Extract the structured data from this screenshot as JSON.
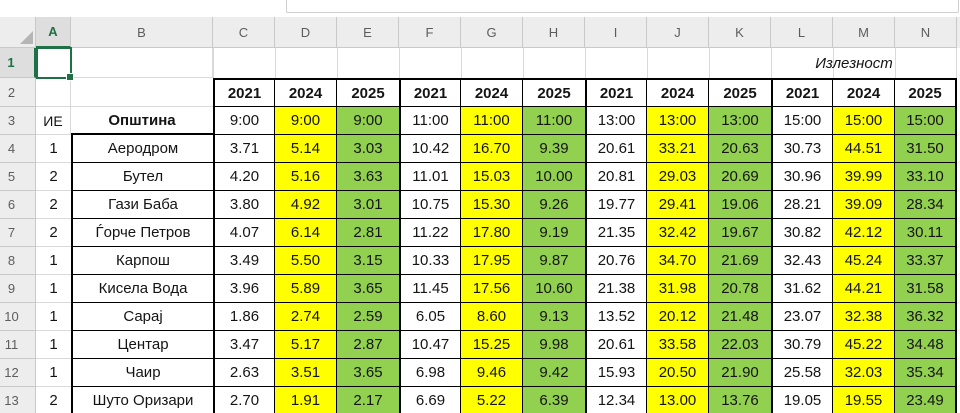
{
  "window": {
    "formula_bar_value": ""
  },
  "column_headers": [
    "A",
    "B",
    "C",
    "D",
    "E",
    "F",
    "G",
    "H",
    "I",
    "J",
    "K",
    "L",
    "M",
    "N"
  ],
  "row_headers_top": [
    "1",
    "2",
    "3"
  ],
  "selection": {
    "active_cell": "A1"
  },
  "row1_label": "Излезност",
  "years": [
    "2021",
    "2024",
    "2025",
    "2021",
    "2024",
    "2025",
    "2021",
    "2024",
    "2025",
    "2021",
    "2024",
    "2025"
  ],
  "subheader": {
    "ie": "ИЕ",
    "municipality": "Општина"
  },
  "times": [
    "9:00",
    "9:00",
    "9:00",
    "11:00",
    "11:00",
    "11:00",
    "13:00",
    "13:00",
    "13:00",
    "15:00",
    "15:00",
    "15:00"
  ],
  "colors": {
    "col_2021_bg": "#FFFFFF",
    "col_2024_bg": "#FFFF00",
    "col_2025_bg": "#92D050",
    "selection_green": "#1E7145"
  },
  "rows": [
    {
      "num": "4",
      "ie": "1",
      "name": "Аеродром",
      "values": [
        "3.71",
        "5.14",
        "3.03",
        "10.42",
        "16.70",
        "9.39",
        "20.61",
        "33.21",
        "20.63",
        "30.73",
        "44.51",
        "31.50"
      ]
    },
    {
      "num": "5",
      "ie": "2",
      "name": "Бутел",
      "values": [
        "4.20",
        "5.16",
        "3.63",
        "11.01",
        "15.03",
        "10.00",
        "20.81",
        "29.03",
        "20.69",
        "30.96",
        "39.99",
        "33.10"
      ]
    },
    {
      "num": "6",
      "ie": "2",
      "name": "Гази Баба",
      "values": [
        "3.80",
        "4.92",
        "3.01",
        "10.75",
        "15.30",
        "9.26",
        "19.77",
        "29.41",
        "19.06",
        "28.21",
        "39.09",
        "28.34"
      ]
    },
    {
      "num": "7",
      "ie": "2",
      "name": "Ѓорче Петров",
      "values": [
        "4.07",
        "6.14",
        "2.81",
        "11.22",
        "17.80",
        "9.19",
        "21.35",
        "32.42",
        "19.67",
        "30.82",
        "42.12",
        "30.11"
      ]
    },
    {
      "num": "8",
      "ie": "1",
      "name": "Карпош",
      "values": [
        "3.49",
        "5.50",
        "3.15",
        "10.33",
        "17.95",
        "9.87",
        "20.76",
        "34.70",
        "21.69",
        "32.43",
        "45.24",
        "33.37"
      ]
    },
    {
      "num": "9",
      "ie": "1",
      "name": "Кисела Вода",
      "values": [
        "3.96",
        "5.89",
        "3.65",
        "11.45",
        "17.56",
        "10.60",
        "21.38",
        "31.98",
        "20.78",
        "31.62",
        "44.21",
        "31.58"
      ]
    },
    {
      "num": "10",
      "ie": "1",
      "name": "Сарај",
      "values": [
        "1.86",
        "2.74",
        "2.59",
        "6.05",
        "8.60",
        "9.13",
        "13.52",
        "20.12",
        "21.48",
        "23.07",
        "32.38",
        "36.32"
      ]
    },
    {
      "num": "11",
      "ie": "1",
      "name": "Центар",
      "values": [
        "3.47",
        "5.17",
        "2.87",
        "10.47",
        "15.25",
        "9.98",
        "20.61",
        "33.58",
        "22.03",
        "30.79",
        "45.22",
        "34.48"
      ]
    },
    {
      "num": "12",
      "ie": "1",
      "name": "Чаир",
      "values": [
        "2.63",
        "3.51",
        "3.65",
        "6.98",
        "9.46",
        "9.42",
        "15.93",
        "20.50",
        "21.90",
        "25.58",
        "32.03",
        "35.34"
      ]
    },
    {
      "num": "13",
      "ie": "2",
      "name": "Шуто Оризари",
      "values": [
        "2.70",
        "1.91",
        "2.17",
        "6.69",
        "5.22",
        "6.39",
        "12.34",
        "13.00",
        "13.76",
        "19.05",
        "19.55",
        "23.49"
      ]
    }
  ]
}
